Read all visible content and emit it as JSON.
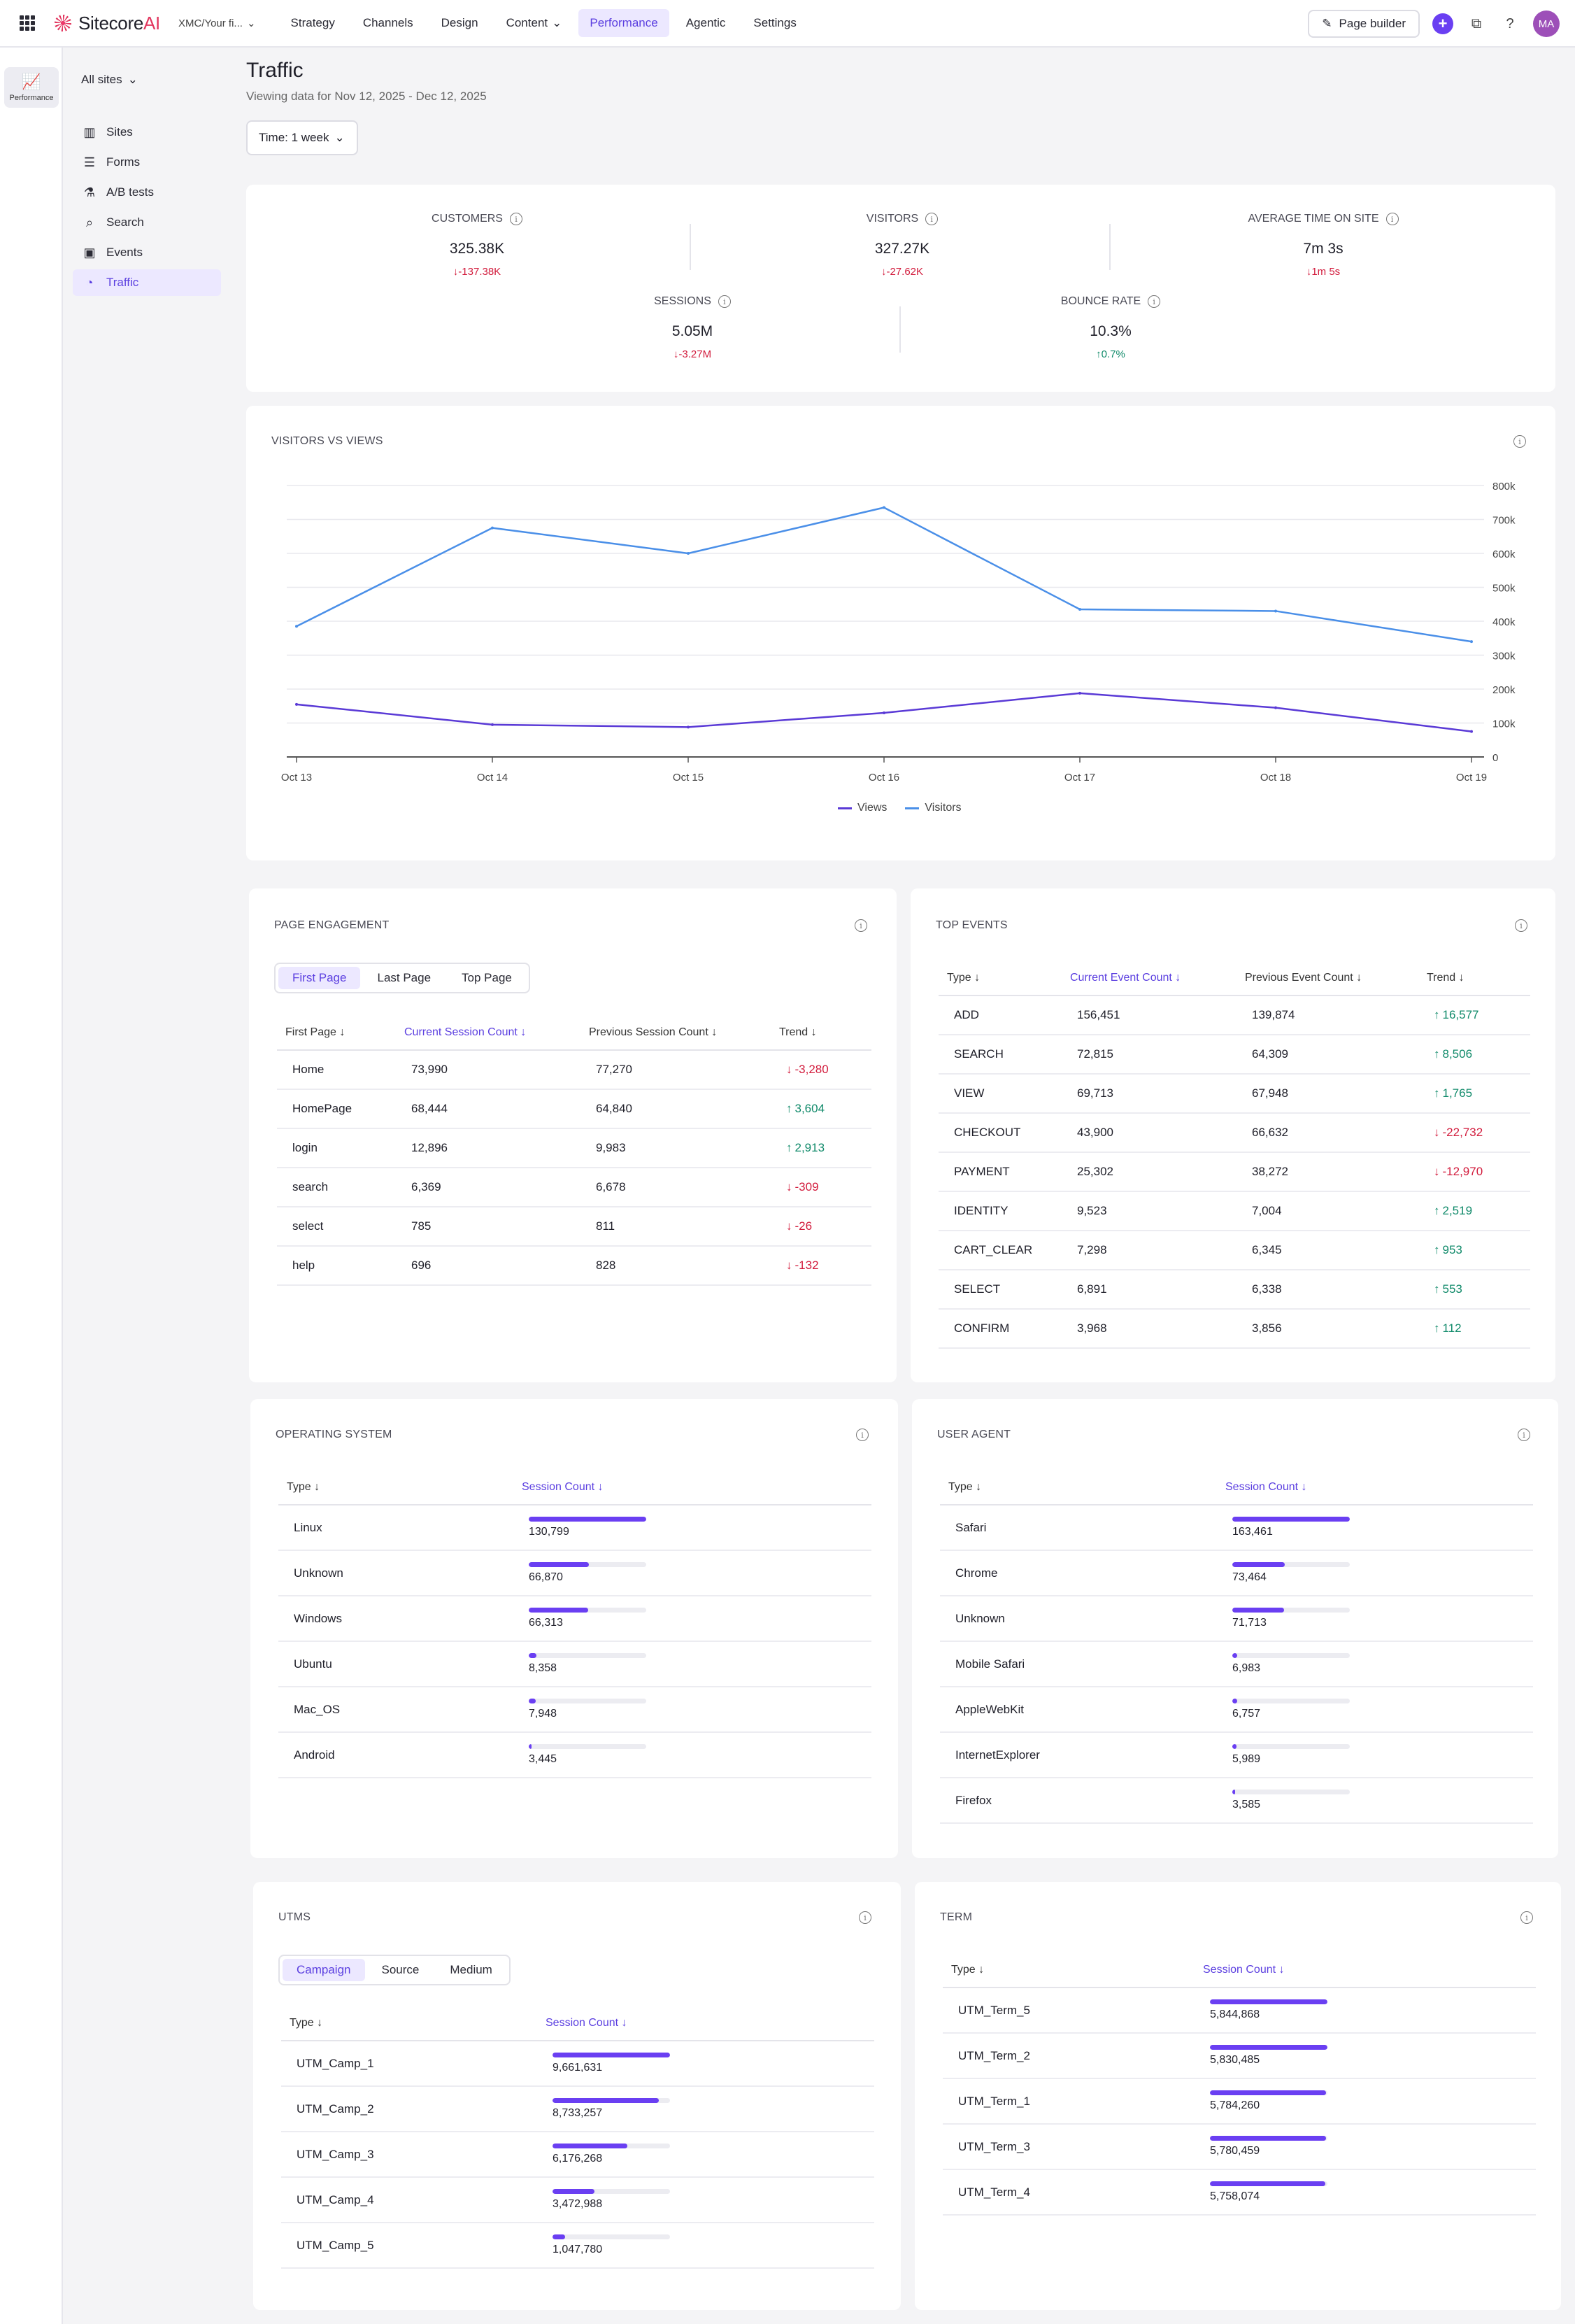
{
  "topbar": {
    "brand": "Sitecore",
    "brand_ai": "AI",
    "site_switch": "XMC/Your fi...",
    "nav": [
      {
        "label": "Strategy",
        "active": false,
        "caret": false
      },
      {
        "label": "Channels",
        "active": false,
        "caret": false
      },
      {
        "label": "Design",
        "active": false,
        "caret": false
      },
      {
        "label": "Content",
        "active": false,
        "caret": true
      },
      {
        "label": "Performance",
        "active": true,
        "caret": false
      },
      {
        "label": "Agentic",
        "active": false,
        "caret": false
      },
      {
        "label": "Settings",
        "active": false,
        "caret": false
      }
    ],
    "page_builder": "Page builder",
    "avatar": "MA"
  },
  "rail": {
    "item": "Performance"
  },
  "sidebar": {
    "all_sites": "All sites",
    "items": [
      {
        "label": "Sites",
        "icon": "bar-chart-icon",
        "glyph": "▥",
        "active": false
      },
      {
        "label": "Forms",
        "icon": "form-icon",
        "glyph": "☰",
        "active": false
      },
      {
        "label": "A/B tests",
        "icon": "flask-icon",
        "glyph": "⚗",
        "active": false
      },
      {
        "label": "Search",
        "icon": "search-doc-icon",
        "glyph": "⌕",
        "active": false
      },
      {
        "label": "Events",
        "icon": "events-icon",
        "glyph": "▣",
        "active": false
      },
      {
        "label": "Traffic",
        "icon": "traffic-icon",
        "glyph": "◔",
        "active": true
      }
    ]
  },
  "header": {
    "title": "Traffic",
    "subtitle": "Viewing data for Nov 12, 2025 - Dec 12, 2025",
    "time_select": "Time: 1 week"
  },
  "kpis": {
    "customers": {
      "label": "CUSTOMERS",
      "value": "325.38K",
      "delta": "-137.38K",
      "dir": "down"
    },
    "visitors": {
      "label": "VISITORS",
      "value": "327.27K",
      "delta": "-27.62K",
      "dir": "down"
    },
    "avg_time": {
      "label": "AVERAGE TIME ON SITE",
      "value": "7m 3s",
      "delta": "1m 5s",
      "dir": "down"
    },
    "sessions": {
      "label": "SESSIONS",
      "value": "5.05M",
      "delta": "-3.27M",
      "dir": "down"
    },
    "bounce": {
      "label": "BOUNCE RATE",
      "value": "10.3%",
      "delta": "0.7%",
      "dir": "up"
    }
  },
  "chart": {
    "title": "VISITORS VS VIEWS",
    "colors": {
      "views": "#5a3ad6",
      "visitors": "#4a8fe8",
      "grid": "#e8e8ee",
      "axis": "#555555"
    }
  },
  "chart_data": {
    "type": "line",
    "x": [
      "Oct 13",
      "Oct 14",
      "Oct 15",
      "Oct 16",
      "Oct 17",
      "Oct 18",
      "Oct 19"
    ],
    "ylim": [
      0,
      800000
    ],
    "yticks": [
      0,
      100000,
      200000,
      300000,
      400000,
      500000,
      600000,
      700000,
      800000
    ],
    "ytick_labels": [
      "0",
      "100k",
      "200k",
      "300k",
      "400k",
      "500k",
      "600k",
      "700k",
      "800k"
    ],
    "title": "VISITORS VS VIEWS",
    "grid": true,
    "legend": "bottom-center",
    "series": [
      {
        "name": "Views",
        "values": [
          155000,
          95000,
          88000,
          130000,
          188000,
          145000,
          75000
        ]
      },
      {
        "name": "Visitors",
        "values": [
          385000,
          675000,
          600000,
          735000,
          435000,
          430000,
          340000
        ]
      }
    ]
  },
  "page_engagement": {
    "title": "PAGE ENGAGEMENT",
    "tabs": [
      "First Page",
      "Last Page",
      "Top Page"
    ],
    "active_tab": 0,
    "headers": [
      "First Page",
      "Current Session Count",
      "Previous Session Count",
      "Trend"
    ],
    "rows": [
      {
        "name": "Home",
        "current": "73,990",
        "previous": "77,270",
        "trend": "-3,280",
        "dir": "down"
      },
      {
        "name": "HomePage",
        "current": "68,444",
        "previous": "64,840",
        "trend": "3,604",
        "dir": "up"
      },
      {
        "name": "login",
        "current": "12,896",
        "previous": "9,983",
        "trend": "2,913",
        "dir": "up"
      },
      {
        "name": "search",
        "current": "6,369",
        "previous": "6,678",
        "trend": "-309",
        "dir": "down"
      },
      {
        "name": "select",
        "current": "785",
        "previous": "811",
        "trend": "-26",
        "dir": "down"
      },
      {
        "name": "help",
        "current": "696",
        "previous": "828",
        "trend": "-132",
        "dir": "down"
      }
    ]
  },
  "top_events": {
    "title": "TOP EVENTS",
    "headers": [
      "Type",
      "Current Event Count",
      "Previous Event Count",
      "Trend"
    ],
    "rows": [
      {
        "name": "ADD",
        "current": "156,451",
        "previous": "139,874",
        "trend": "16,577",
        "dir": "up"
      },
      {
        "name": "SEARCH",
        "current": "72,815",
        "previous": "64,309",
        "trend": "8,506",
        "dir": "up"
      },
      {
        "name": "VIEW",
        "current": "69,713",
        "previous": "67,948",
        "trend": "1,765",
        "dir": "up"
      },
      {
        "name": "CHECKOUT",
        "current": "43,900",
        "previous": "66,632",
        "trend": "-22,732",
        "dir": "down"
      },
      {
        "name": "PAYMENT",
        "current": "25,302",
        "previous": "38,272",
        "trend": "-12,970",
        "dir": "down"
      },
      {
        "name": "IDENTITY",
        "current": "9,523",
        "previous": "7,004",
        "trend": "2,519",
        "dir": "up"
      },
      {
        "name": "CART_CLEAR",
        "current": "7,298",
        "previous": "6,345",
        "trend": "953",
        "dir": "up"
      },
      {
        "name": "SELECT",
        "current": "6,891",
        "previous": "6,338",
        "trend": "553",
        "dir": "up"
      },
      {
        "name": "CONFIRM",
        "current": "3,968",
        "previous": "3,856",
        "trend": "112",
        "dir": "up"
      }
    ]
  },
  "operating_system": {
    "title": "OPERATING SYSTEM",
    "headers": [
      "Type",
      "Session Count"
    ],
    "rows": [
      {
        "name": "Linux",
        "value": "130,799",
        "fraction": 1.0
      },
      {
        "name": "Unknown",
        "value": "66,870",
        "fraction": 0.511
      },
      {
        "name": "Windows",
        "value": "66,313",
        "fraction": 0.507
      },
      {
        "name": "Ubuntu",
        "value": "8,358",
        "fraction": 0.064
      },
      {
        "name": "Mac_OS",
        "value": "7,948",
        "fraction": 0.061
      },
      {
        "name": "Android",
        "value": "3,445",
        "fraction": 0.026
      }
    ]
  },
  "user_agent": {
    "title": "USER AGENT",
    "headers": [
      "Type",
      "Session Count"
    ],
    "rows": [
      {
        "name": "Safari",
        "value": "163,461",
        "fraction": 1.0
      },
      {
        "name": "Chrome",
        "value": "73,464",
        "fraction": 0.449
      },
      {
        "name": "Unknown",
        "value": "71,713",
        "fraction": 0.439
      },
      {
        "name": "Mobile Safari",
        "value": "6,983",
        "fraction": 0.043
      },
      {
        "name": "AppleWebKit",
        "value": "6,757",
        "fraction": 0.041
      },
      {
        "name": "InternetExplorer",
        "value": "5,989",
        "fraction": 0.037
      },
      {
        "name": "Firefox",
        "value": "3,585",
        "fraction": 0.022
      }
    ]
  },
  "utms": {
    "title": "UTMS",
    "tabs": [
      "Campaign",
      "Source",
      "Medium"
    ],
    "active_tab": 0,
    "headers": [
      "Type",
      "Session Count"
    ],
    "rows": [
      {
        "name": "UTM_Camp_1",
        "value": "9,661,631",
        "fraction": 1.0
      },
      {
        "name": "UTM_Camp_2",
        "value": "8,733,257",
        "fraction": 0.904
      },
      {
        "name": "UTM_Camp_3",
        "value": "6,176,268",
        "fraction": 0.639
      },
      {
        "name": "UTM_Camp_4",
        "value": "3,472,988",
        "fraction": 0.359
      },
      {
        "name": "UTM_Camp_5",
        "value": "1,047,780",
        "fraction": 0.108
      }
    ]
  },
  "term": {
    "title": "TERM",
    "headers": [
      "Type",
      "Session Count"
    ],
    "rows": [
      {
        "name": "UTM_Term_5",
        "value": "5,844,868",
        "fraction": 1.0
      },
      {
        "name": "UTM_Term_2",
        "value": "5,830,485",
        "fraction": 0.998
      },
      {
        "name": "UTM_Term_1",
        "value": "5,784,260",
        "fraction": 0.99
      },
      {
        "name": "UTM_Term_3",
        "value": "5,780,459",
        "fraction": 0.989
      },
      {
        "name": "UTM_Term_4",
        "value": "5,758,074",
        "fraction": 0.985
      }
    ]
  }
}
